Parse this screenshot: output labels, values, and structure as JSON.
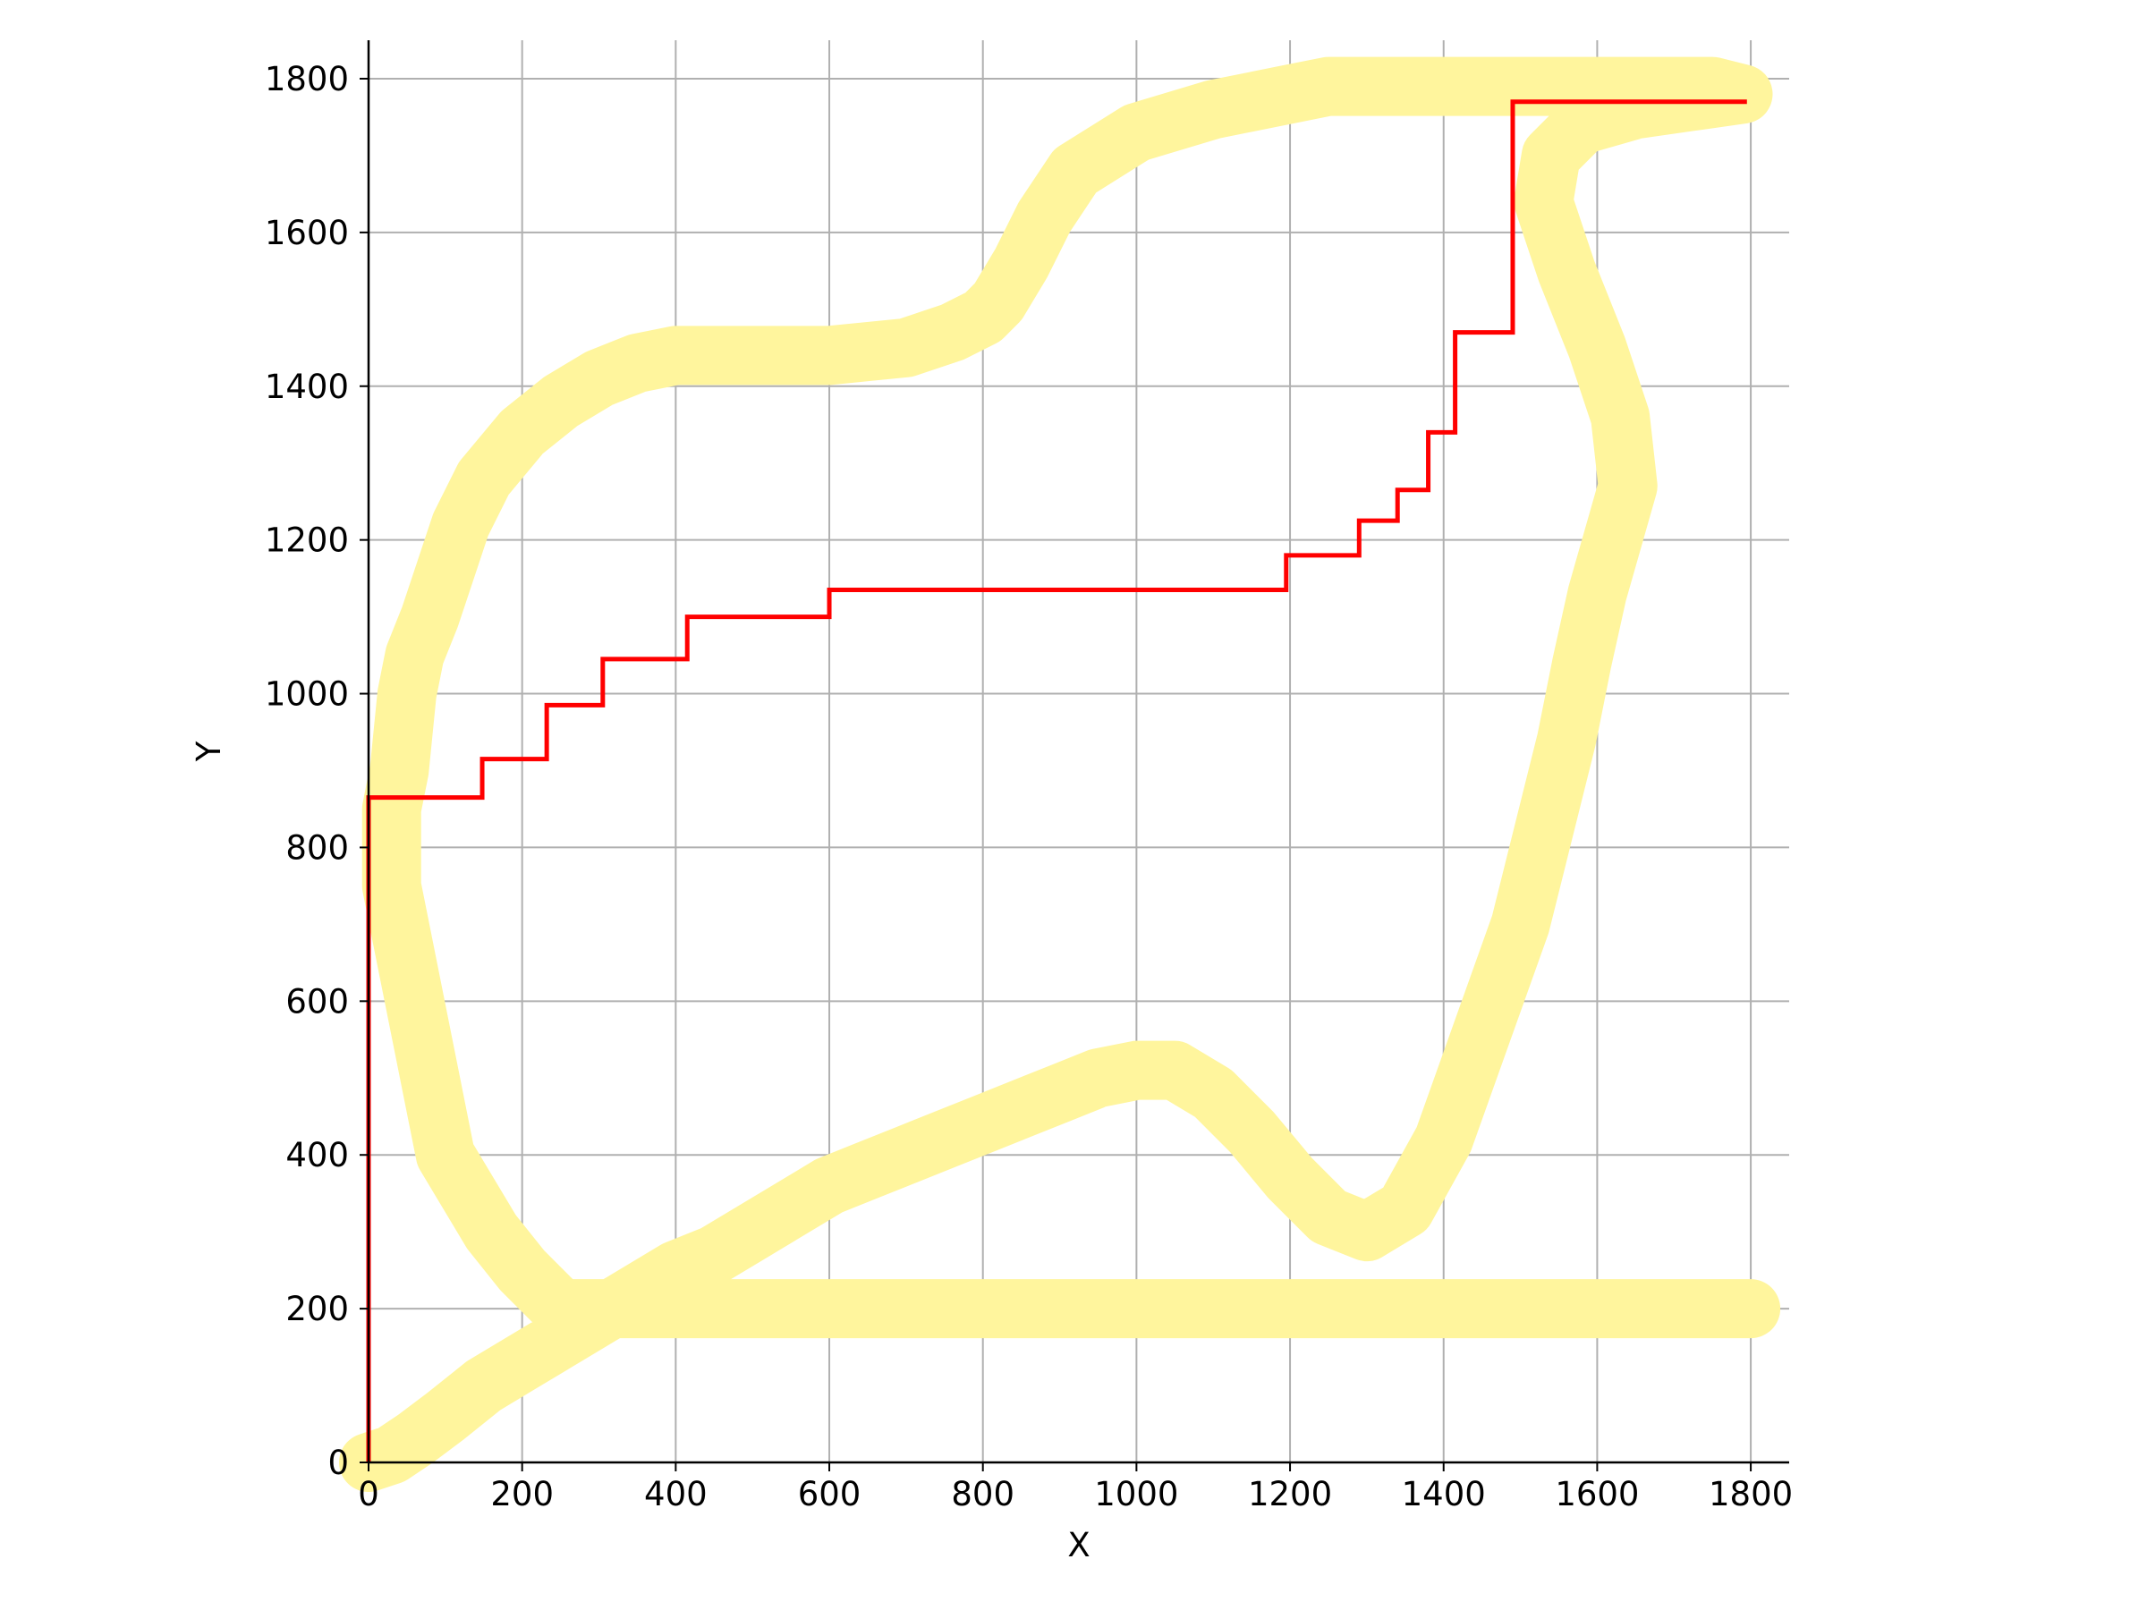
{
  "chart_data": {
    "type": "line",
    "title": "",
    "xlabel": "X",
    "ylabel": "Y",
    "xlim": [
      0,
      1850
    ],
    "ylim": [
      0,
      1850
    ],
    "x_ticks": [
      0,
      200,
      400,
      600,
      800,
      1000,
      1200,
      1400,
      1600,
      1800
    ],
    "y_ticks": [
      0,
      200,
      400,
      600,
      800,
      1000,
      1200,
      1400,
      1600,
      1800
    ],
    "grid": true,
    "legend": "none",
    "colors": {
      "track": "#fff59d",
      "path": "#ff0000",
      "grid": "#b0b0b0",
      "axis": "#000000"
    },
    "series": [
      {
        "kind": "track",
        "x": [
          0,
          30,
          60,
          100,
          150,
          200,
          250,
          300,
          350,
          400,
          450,
          500,
          550,
          600,
          650,
          700,
          750,
          800,
          850,
          900,
          950,
          1000,
          1050,
          1100,
          1150,
          1200,
          1250,
          1300,
          1350,
          1400,
          1450,
          1500,
          1530,
          1560,
          1580,
          1600,
          1620,
          1640,
          1630,
          1600,
          1560,
          1530,
          1540,
          1580,
          1650,
          1720,
          1790,
          1750,
          1700,
          1650,
          1600,
          1500,
          1400,
          1300,
          1250,
          1200,
          1100,
          1000,
          920,
          880,
          850,
          820,
          800,
          780,
          760,
          730,
          700,
          650,
          600,
          550,
          500,
          450,
          400,
          350,
          300,
          250,
          200,
          150,
          120,
          100,
          80,
          60,
          50,
          45,
          40,
          30,
          30,
          30,
          40,
          50,
          60,
          70,
          80,
          90,
          100,
          130,
          160,
          200,
          250,
          300,
          350,
          400,
          450,
          500,
          550,
          600,
          650,
          700,
          750,
          800,
          850,
          900,
          950,
          1000,
          1050,
          1100,
          1150,
          1200,
          1250,
          1300,
          1350,
          1380,
          1400,
          1410,
          1420,
          1430,
          1440,
          1460,
          1480,
          1510,
          1550,
          1600,
          1650,
          1700,
          1750,
          1800
        ],
        "y": [
          0,
          10,
          30,
          60,
          100,
          130,
          160,
          190,
          220,
          250,
          270,
          300,
          330,
          360,
          380,
          400,
          420,
          440,
          460,
          480,
          500,
          510,
          510,
          480,
          430,
          370,
          320,
          300,
          330,
          420,
          560,
          700,
          820,
          940,
          1040,
          1130,
          1200,
          1270,
          1360,
          1450,
          1550,
          1640,
          1700,
          1740,
          1760,
          1770,
          1780,
          1790,
          1790,
          1790,
          1790,
          1790,
          1790,
          1790,
          1790,
          1780,
          1760,
          1730,
          1680,
          1620,
          1560,
          1510,
          1490,
          1480,
          1470,
          1460,
          1450,
          1445,
          1440,
          1440,
          1440,
          1440,
          1440,
          1430,
          1410,
          1380,
          1340,
          1280,
          1220,
          1160,
          1100,
          1050,
          1000,
          950,
          900,
          850,
          800,
          750,
          700,
          650,
          600,
          550,
          500,
          450,
          400,
          350,
          300,
          250,
          200,
          200,
          200,
          200,
          200,
          200,
          200,
          200,
          200,
          200,
          200,
          200,
          200,
          200,
          200,
          200,
          200,
          200,
          200,
          200,
          200,
          200,
          200,
          200,
          200,
          200,
          200,
          200,
          200,
          200,
          200,
          200,
          200,
          200,
          200,
          200,
          200,
          200
        ]
      },
      {
        "kind": "path",
        "x": [
          0,
          0,
          148,
          148,
          232,
          232,
          305,
          305,
          415,
          415,
          600,
          600,
          1195,
          1195,
          1290,
          1290,
          1340,
          1340,
          1380,
          1380,
          1415,
          1415,
          1490,
          1490,
          1795
        ],
        "y": [
          0,
          865,
          865,
          915,
          915,
          985,
          985,
          1045,
          1045,
          1100,
          1100,
          1135,
          1135,
          1180,
          1180,
          1225,
          1225,
          1265,
          1265,
          1340,
          1340,
          1470,
          1470,
          1770,
          1770
        ]
      }
    ]
  }
}
